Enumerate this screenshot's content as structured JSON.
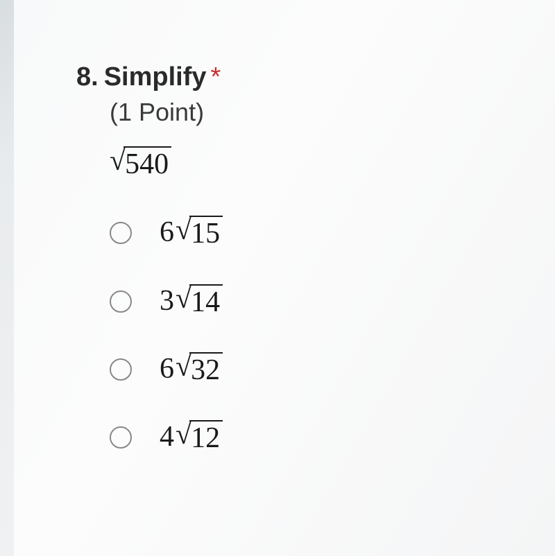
{
  "question": {
    "number": "8.",
    "title": "Simplify",
    "required_mark": "*",
    "points": "(1 Point)",
    "expression_radicand": "540"
  },
  "options": [
    {
      "coef": "6",
      "radicand": "15"
    },
    {
      "coef": "3",
      "radicand": "14"
    },
    {
      "coef": "6",
      "radicand": "32"
    },
    {
      "coef": "4",
      "radicand": "12"
    }
  ],
  "style": {
    "text_color": "#2a2a2a",
    "required_color": "#c43030",
    "radio_border": "#888",
    "font_question": "Segoe UI",
    "font_math": "Times New Roman",
    "fontsize_header": 38,
    "fontsize_points": 36,
    "fontsize_math": 42
  }
}
